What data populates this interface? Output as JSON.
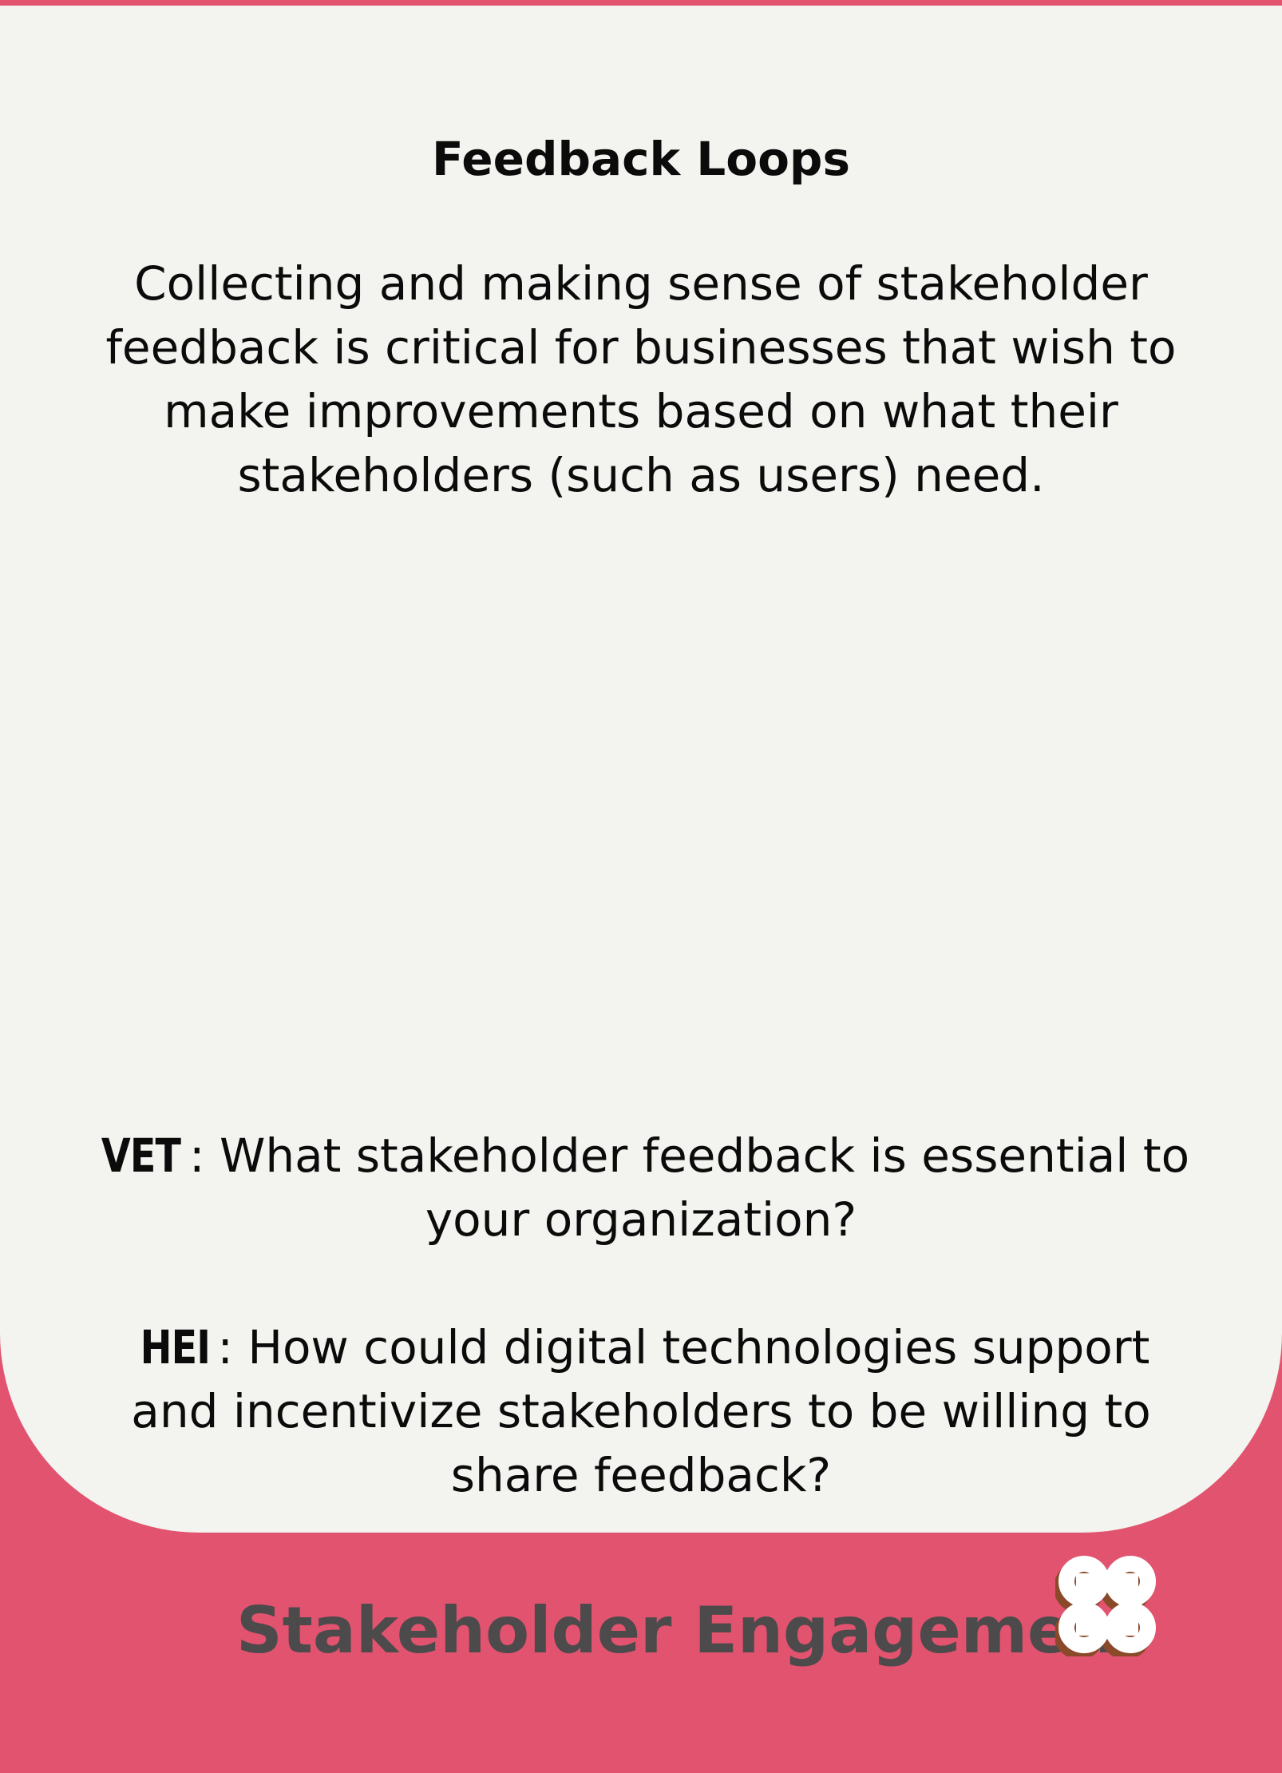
{
  "card": {
    "title": "Feedback Loops",
    "description": "Collecting and making sense of stakeholder feedback is critical for businesses that wish to make improvements based on what their stakeholders (such as users) need.",
    "prompts": [
      {
        "tag": "VET",
        "text": ": What stakeholder feedback is essential to your organization?"
      },
      {
        "tag": "HEI",
        "text": ": How could digital technologies support and incentivize stakeholders to be willing to share feedback?"
      }
    ]
  },
  "footer": {
    "category": "Stakeholder Engagement",
    "logo_icon": "command-key-icon"
  },
  "colors": {
    "accent": "#e2536f",
    "card_background": "#f3f4ef",
    "category_text": "#4c4a4b",
    "logo_fill": "#ffffff",
    "logo_shadow": "#8a4a2a"
  }
}
